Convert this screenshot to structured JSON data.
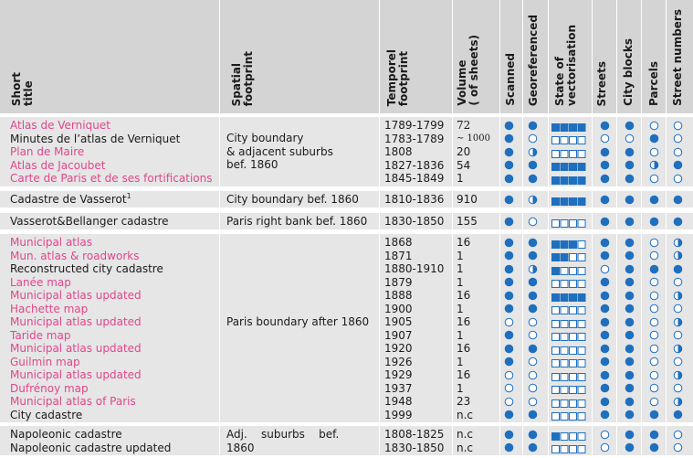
{
  "columns": [
    {
      "key": "title",
      "label": "Short\ntitle"
    },
    {
      "key": "spatial",
      "label": "Spatial\nfootprint"
    },
    {
      "key": "temporal",
      "label": "Temporel\nfootprint"
    },
    {
      "key": "volume",
      "label": "Volume\n( of sheets)"
    },
    {
      "key": "scanned",
      "label": "Scanned"
    },
    {
      "key": "georef",
      "label": "Georeferenced"
    },
    {
      "key": "vector",
      "label": "State of\nvectorisation"
    },
    {
      "key": "streets",
      "label": "Streets"
    },
    {
      "key": "blocks",
      "label": "City blocks"
    },
    {
      "key": "parcels",
      "label": "Parcels"
    },
    {
      "key": "numbers",
      "label": "Street numbers"
    }
  ],
  "colors": {
    "accent": "#e0468c",
    "text": "#1a1a1a",
    "icon": "#1f6fbf",
    "band": "#e6e6e6",
    "header": "#d4d4d4"
  },
  "legend": {
    "circle_fill": "full / half / empty",
    "vectorisation_boxes": "filled box count out of 4"
  },
  "groups": [
    {
      "spatial": [
        "City boundary",
        "& adjacent suburbs",
        "bef. 1860"
      ],
      "rows": [
        {
          "title": "Atlas de Verniquet",
          "pink": true,
          "temporal": "1789-1799",
          "volume": "72",
          "scanned": "full",
          "georef": "full",
          "vector": 4,
          "streets": "full",
          "blocks": "full",
          "parcels": "empty",
          "numbers": "empty"
        },
        {
          "title": "Minutes de l’atlas de Verniquet",
          "pink": false,
          "temporal": "1783-1789",
          "volume": "∼ 1000",
          "scanned": "full",
          "georef": "empty",
          "vector": 0,
          "streets": "empty",
          "blocks": "empty",
          "parcels": "full",
          "numbers": "empty"
        },
        {
          "title": "Plan de Maire",
          "pink": true,
          "temporal": "1808",
          "volume": "20",
          "scanned": "full",
          "georef": "half",
          "vector": 0,
          "streets": "full",
          "blocks": "full",
          "parcels": "empty",
          "numbers": "empty"
        },
        {
          "title": "Atlas de Jacoubet",
          "pink": true,
          "temporal": "1827-1836",
          "volume": "54",
          "scanned": "full",
          "georef": "full",
          "vector": 4,
          "streets": "full",
          "blocks": "full",
          "parcels": "half",
          "numbers": "full"
        },
        {
          "title": "Carte de Paris et de ses fortifications",
          "pink": true,
          "temporal": "1845-1849",
          "volume": "1",
          "scanned": "full",
          "georef": "full",
          "vector": 4,
          "streets": "full",
          "blocks": "full",
          "parcels": "empty",
          "numbers": "empty"
        }
      ]
    },
    {
      "spatial": [
        "City boundary bef. 1860"
      ],
      "rows": [
        {
          "title": "Cadastre de Vasserot",
          "sup": "1",
          "pink": false,
          "temporal": "1810-1836",
          "volume": "910",
          "scanned": "full",
          "georef": "half",
          "vector": 4,
          "streets": "full",
          "blocks": "full",
          "parcels": "full",
          "numbers": "full"
        }
      ]
    },
    {
      "spatial": [
        "Paris right bank bef. 1860"
      ],
      "rows": [
        {
          "title": "Vasserot&Bellanger cadastre",
          "pink": false,
          "temporal": "1830-1850",
          "volume": "155",
          "scanned": "full",
          "georef": "empty",
          "vector": 0,
          "streets": "full",
          "blocks": "full",
          "parcels": "full",
          "numbers": "full"
        }
      ]
    },
    {
      "spatial": [
        "Paris boundary after 1860"
      ],
      "rows": [
        {
          "title": "Municipal atlas",
          "pink": true,
          "temporal": "1868",
          "volume": "16",
          "scanned": "full",
          "georef": "full",
          "vector": 3,
          "streets": "full",
          "blocks": "full",
          "parcels": "empty",
          "numbers": "half"
        },
        {
          "title": "Mun. atlas & roadworks",
          "pink": true,
          "temporal": "1871",
          "volume": "1",
          "scanned": "full",
          "georef": "full",
          "vector": 2,
          "streets": "full",
          "blocks": "full",
          "parcels": "empty",
          "numbers": "half"
        },
        {
          "title": "Reconstructed city cadastre",
          "pink": false,
          "temporal": "1880-1910",
          "volume": "1",
          "scanned": "full",
          "georef": "half",
          "vector": 1,
          "streets": "empty",
          "blocks": "full",
          "parcels": "full",
          "numbers": "full"
        },
        {
          "title": "Lanée map",
          "pink": true,
          "temporal": "1879",
          "volume": "1",
          "scanned": "full",
          "georef": "full",
          "vector": 0,
          "streets": "full",
          "blocks": "full",
          "parcels": "empty",
          "numbers": "empty"
        },
        {
          "title": "Municipal atlas updated",
          "pink": true,
          "temporal": "1888",
          "volume": "16",
          "scanned": "full",
          "georef": "full",
          "vector": 4,
          "streets": "full",
          "blocks": "full",
          "parcels": "empty",
          "numbers": "half"
        },
        {
          "title": "Hachette map",
          "pink": true,
          "temporal": "1900",
          "volume": "1",
          "scanned": "full",
          "georef": "full",
          "vector": 0,
          "streets": "full",
          "blocks": "full",
          "parcels": "empty",
          "numbers": "empty"
        },
        {
          "title": "Municipal atlas updated",
          "pink": true,
          "temporal": "1905",
          "volume": "16",
          "scanned": "empty",
          "georef": "empty",
          "vector": 0,
          "streets": "full",
          "blocks": "full",
          "parcels": "empty",
          "numbers": "half"
        },
        {
          "title": "Taride map",
          "pink": true,
          "temporal": "1907",
          "volume": "1",
          "scanned": "full",
          "georef": "empty",
          "vector": 0,
          "streets": "full",
          "blocks": "full",
          "parcels": "empty",
          "numbers": "empty"
        },
        {
          "title": "Municipal atlas updated",
          "pink": true,
          "temporal": "1920",
          "volume": "16",
          "scanned": "full",
          "georef": "full",
          "vector": 0,
          "streets": "full",
          "blocks": "full",
          "parcels": "empty",
          "numbers": "half"
        },
        {
          "title": "Guilmin map",
          "pink": true,
          "temporal": "1926",
          "volume": "1",
          "scanned": "full",
          "georef": "empty",
          "vector": 0,
          "streets": "full",
          "blocks": "full",
          "parcels": "empty",
          "numbers": "empty"
        },
        {
          "title": "Municipal atlas updated",
          "pink": true,
          "temporal": "1929",
          "volume": "16",
          "scanned": "empty",
          "georef": "empty",
          "vector": 0,
          "streets": "full",
          "blocks": "full",
          "parcels": "empty",
          "numbers": "half"
        },
        {
          "title": "Dufrénoy map",
          "pink": true,
          "temporal": "1937",
          "volume": "1",
          "scanned": "empty",
          "georef": "empty",
          "vector": 0,
          "streets": "full",
          "blocks": "full",
          "parcels": "empty",
          "numbers": "empty"
        },
        {
          "title": "Municipal atlas of Paris",
          "pink": true,
          "temporal": "1948",
          "volume": "23",
          "scanned": "empty",
          "georef": "empty",
          "vector": 0,
          "streets": "full",
          "blocks": "full",
          "parcels": "empty",
          "numbers": "half"
        },
        {
          "title": "City cadastre",
          "pink": false,
          "temporal": "1999",
          "volume": "n.c",
          "scanned": "full",
          "georef": "full",
          "vector": 0,
          "streets": "full",
          "blocks": "full",
          "parcels": "full",
          "numbers": "full"
        }
      ]
    },
    {
      "spatial": [
        "Adj.    suburbs    bef.",
        "1860"
      ],
      "rows": [
        {
          "title": "Napoleonic cadastre",
          "pink": false,
          "temporal": "1808-1825",
          "volume": "n.c",
          "scanned": "full",
          "georef": "full",
          "vector": 1,
          "streets": "empty",
          "blocks": "full",
          "parcels": "full",
          "numbers": "empty"
        },
        {
          "title": "Napoleonic cadastre updated",
          "pink": false,
          "temporal": "1830-1850",
          "volume": "n.c",
          "scanned": "full",
          "georef": "full",
          "vector": 0,
          "streets": "empty",
          "blocks": "full",
          "parcels": "full",
          "numbers": "empty"
        }
      ]
    }
  ]
}
